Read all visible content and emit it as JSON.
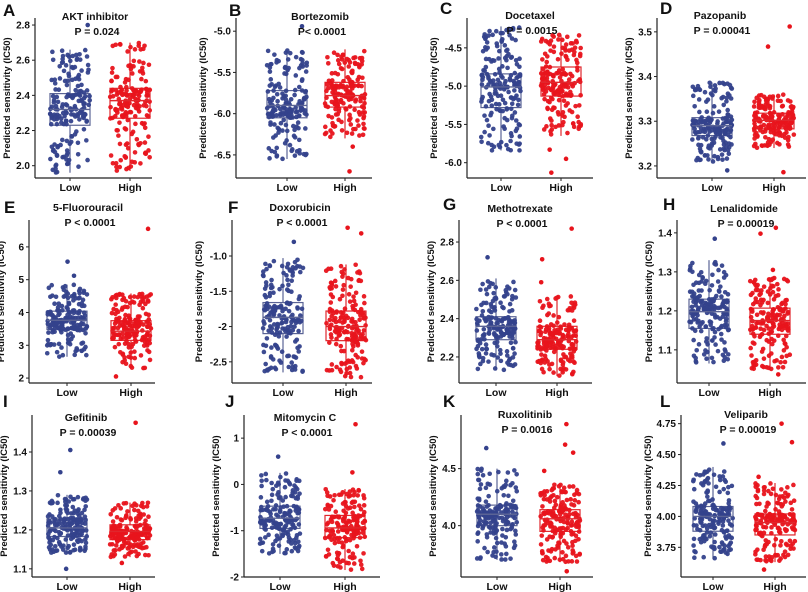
{
  "chart_data": [
    {
      "type": "box",
      "panel": "A",
      "title": "AKT inhibitor",
      "pvalue": "P = 0.024",
      "ylabel": "Predicted sensitivity (IC50)",
      "categories": [
        "Low",
        "High"
      ],
      "ylim": [
        1.93,
        2.84
      ],
      "ticks": [
        {
          "v": 2.0,
          "label": "2.0"
        },
        {
          "v": 2.2,
          "label": "2.2"
        },
        {
          "v": 2.4,
          "label": "2.4"
        },
        {
          "v": 2.6,
          "label": "2.6"
        },
        {
          "v": 2.8,
          "label": "2.8"
        }
      ],
      "series": [
        {
          "name": "Low",
          "q1": 2.23,
          "median": 2.32,
          "q3": 2.41,
          "whisker_low": 1.96,
          "whisker_high": 2.66,
          "outliers": [
            2.8
          ]
        },
        {
          "name": "High",
          "q1": 2.27,
          "median": 2.37,
          "q3": 2.44,
          "whisker_low": 1.97,
          "whisker_high": 2.7,
          "outliers": []
        }
      ]
    },
    {
      "type": "box",
      "panel": "B",
      "title": "Bortezomib",
      "pvalue": "P< 0.0001",
      "ylabel": "Predicted sensitivity (IC50)",
      "categories": [
        "Low",
        "High"
      ],
      "ylim": [
        -6.78,
        -4.84
      ],
      "ticks": [
        {
          "v": -6.5,
          "label": "-6.5"
        },
        {
          "v": -6.0,
          "label": "-6.0"
        },
        {
          "v": -5.5,
          "label": "-5.5"
        },
        {
          "v": -5.0,
          "label": "-5.0"
        }
      ],
      "series": [
        {
          "name": "Low",
          "q1": -6.05,
          "median": -5.9,
          "q3": -5.72,
          "whisker_low": -6.55,
          "whisker_high": -5.23,
          "outliers": [
            -4.94
          ]
        },
        {
          "name": "High",
          "q1": -5.92,
          "median": -5.78,
          "q3": -5.62,
          "whisker_low": -6.3,
          "whisker_high": -5.22,
          "outliers": [
            -6.4,
            -6.7
          ]
        }
      ]
    },
    {
      "type": "box",
      "panel": "C",
      "title": "Docetaxel",
      "pvalue": "P = 0.0015",
      "ylabel": "Predicted sensitivity (IC50)",
      "categories": [
        "Low",
        "High"
      ],
      "ylim": [
        -6.2,
        -4.11
      ],
      "ticks": [
        {
          "v": -6.0,
          "label": "-6.0"
        },
        {
          "v": -5.5,
          "label": "-5.5"
        },
        {
          "v": -5.0,
          "label": "-5.0"
        },
        {
          "v": -4.5,
          "label": "-4.5"
        }
      ],
      "series": [
        {
          "name": "Low",
          "q1": -5.28,
          "median": -5.01,
          "q3": -4.84,
          "whisker_low": -5.84,
          "whisker_high": -4.22,
          "outliers": []
        },
        {
          "name": "High",
          "q1": -5.13,
          "median": -4.95,
          "q3": -4.75,
          "whisker_low": -5.65,
          "whisker_high": -4.33,
          "outliers": [
            -5.83,
            -5.95,
            -6.13
          ]
        }
      ]
    },
    {
      "type": "box",
      "panel": "D",
      "title": "Pazopanib",
      "pvalue": "P = 0.00041",
      "ylabel": "Predicted sensitivity (IC50)",
      "categories": [
        "Low",
        "High"
      ],
      "ylim": [
        3.173,
        3.531
      ],
      "ticks": [
        {
          "v": 3.2,
          "label": "3.2"
        },
        {
          "v": 3.3,
          "label": "3.3"
        },
        {
          "v": 3.4,
          "label": "3.4"
        },
        {
          "v": 3.5,
          "label": "3.5"
        }
      ],
      "series": [
        {
          "name": "Low",
          "q1": 3.268,
          "median": 3.29,
          "q3": 3.308,
          "whisker_low": 3.21,
          "whisker_high": 3.387,
          "outliers": [
            3.19
          ]
        },
        {
          "name": "High",
          "q1": 3.283,
          "median": 3.302,
          "q3": 3.318,
          "whisker_low": 3.24,
          "whisker_high": 3.36,
          "outliers": [
            3.512,
            3.467,
            3.186
          ]
        }
      ]
    },
    {
      "type": "box",
      "panel": "E",
      "title": "5-Fluorouracil",
      "pvalue": "P < 0.0001",
      "ylabel": "Predicted sensitivity (IC50)",
      "categories": [
        "Low",
        "High"
      ],
      "ylim": [
        1.85,
        6.82
      ],
      "ticks": [
        {
          "v": 2,
          "label": "2"
        },
        {
          "v": 3,
          "label": "3"
        },
        {
          "v": 4,
          "label": "4"
        },
        {
          "v": 5,
          "label": "5"
        },
        {
          "v": 6,
          "label": "6"
        }
      ],
      "series": [
        {
          "name": "Low",
          "q1": 3.48,
          "median": 3.76,
          "q3": 4.04,
          "whisker_low": 2.65,
          "whisker_high": 4.85,
          "outliers": [
            5.55,
            5.12
          ]
        },
        {
          "name": "High",
          "q1": 3.15,
          "median": 3.43,
          "q3": 3.75,
          "whisker_low": 2.3,
          "whisker_high": 4.58,
          "outliers": [
            6.55,
            2.05
          ]
        }
      ]
    },
    {
      "type": "box",
      "panel": "F",
      "title": "Doxorubicin",
      "pvalue": "P < 0.0001",
      "ylabel": "Predicted sensitivity (IC50)",
      "categories": [
        "Low",
        "High"
      ],
      "ylim": [
        -2.8,
        -0.49
      ],
      "ticks": [
        {
          "v": -2.5,
          "label": "-2.5"
        },
        {
          "v": -2,
          "label": "-2"
        },
        {
          "v": -1.5,
          "label": "-1.5"
        },
        {
          "v": -1.0,
          "label": "-1.0"
        }
      ],
      "series": [
        {
          "name": "Low",
          "q1": -2.1,
          "median": -1.87,
          "q3": -1.66,
          "whisker_low": -2.65,
          "whisker_high": -1.03,
          "outliers": [
            -0.8
          ]
        },
        {
          "name": "High",
          "q1": -2.2,
          "median": -2.0,
          "q3": -1.78,
          "whisker_low": -2.72,
          "whisker_high": -1.12,
          "outliers": [
            -0.6,
            -0.68
          ]
        }
      ]
    },
    {
      "type": "box",
      "panel": "G",
      "title": "Methotrexate",
      "pvalue": "P < 0.0001",
      "ylabel": "Predicted sensitivity (IC50)",
      "categories": [
        "Low",
        "High"
      ],
      "ylim": [
        2.064,
        2.915
      ],
      "ticks": [
        {
          "v": 2.2,
          "label": "2.2"
        },
        {
          "v": 2.4,
          "label": "2.4"
        },
        {
          "v": 2.6,
          "label": "2.6"
        },
        {
          "v": 2.8,
          "label": "2.8"
        }
      ],
      "series": [
        {
          "name": "Low",
          "q1": 2.29,
          "median": 2.36,
          "q3": 2.41,
          "whisker_low": 2.13,
          "whisker_high": 2.61,
          "outliers": [
            2.72
          ]
        },
        {
          "name": "High",
          "q1": 2.24,
          "median": 2.29,
          "q3": 2.36,
          "whisker_low": 2.1,
          "whisker_high": 2.52,
          "outliers": [
            2.87,
            2.71,
            2.59
          ]
        }
      ]
    },
    {
      "type": "box",
      "panel": "H",
      "title": "Lenalidomide",
      "pvalue": "P = 0.00019",
      "ylabel": "Predicted sensitivity (IC50)",
      "categories": [
        "Low",
        "High"
      ],
      "ylim": [
        1.015,
        1.433
      ],
      "ticks": [
        {
          "v": 1.1,
          "label": "1.1"
        },
        {
          "v": 1.2,
          "label": "1.2"
        },
        {
          "v": 1.3,
          "label": "1.3"
        },
        {
          "v": 1.4,
          "label": "1.4"
        }
      ],
      "series": [
        {
          "name": "Low",
          "q1": 1.155,
          "median": 1.198,
          "q3": 1.23,
          "whisker_low": 1.065,
          "whisker_high": 1.33,
          "outliers": [
            1.385
          ]
        },
        {
          "name": "High",
          "q1": 1.14,
          "median": 1.175,
          "q3": 1.207,
          "whisker_low": 1.05,
          "whisker_high": 1.285,
          "outliers": [
            1.413,
            1.398,
            1.305,
            1.037
          ]
        }
      ]
    },
    {
      "type": "box",
      "panel": "I",
      "title": "Gefitinib",
      "pvalue": "P = 0.00039",
      "ylabel": "Predicted sensitivity (IC50)",
      "categories": [
        "Low",
        "High"
      ],
      "ylim": [
        1.079,
        1.495
      ],
      "ticks": [
        {
          "v": 1.1,
          "label": "1.1"
        },
        {
          "v": 1.2,
          "label": "1.2"
        },
        {
          "v": 1.3,
          "label": "1.3"
        },
        {
          "v": 1.4,
          "label": "1.4"
        }
      ],
      "series": [
        {
          "name": "Low",
          "q1": 1.183,
          "median": 1.205,
          "q3": 1.228,
          "whisker_low": 1.14,
          "whisker_high": 1.29,
          "outliers": [
            1.405,
            1.348,
            1.1
          ]
        },
        {
          "name": "High",
          "q1": 1.175,
          "median": 1.196,
          "q3": 1.213,
          "whisker_low": 1.13,
          "whisker_high": 1.27,
          "outliers": [
            1.475,
            1.115
          ]
        }
      ]
    },
    {
      "type": "box",
      "panel": "J",
      "title": "Mitomycin C",
      "pvalue": "P < 0.0001",
      "ylabel": "Predicted sensitivity (IC50)",
      "categories": [
        "Low",
        "High"
      ],
      "ylim": [
        -2.0,
        1.5
      ],
      "ticks": [
        {
          "v": -2,
          "label": "-2"
        },
        {
          "v": -1,
          "label": "-1"
        },
        {
          "v": 0,
          "label": "0"
        },
        {
          "v": 1,
          "label": "1"
        }
      ],
      "series": [
        {
          "name": "Low",
          "q1": -0.95,
          "median": -0.73,
          "q3": -0.47,
          "whisker_low": -1.5,
          "whisker_high": 0.25,
          "outliers": [
            0.6
          ]
        },
        {
          "name": "High",
          "q1": -1.15,
          "median": -0.94,
          "q3": -0.67,
          "whisker_low": -1.85,
          "whisker_high": -0.1,
          "outliers": [
            1.3,
            0.26
          ]
        }
      ]
    },
    {
      "type": "box",
      "panel": "K",
      "title": "Ruxolitinib",
      "pvalue": "P = 0.0016",
      "ylabel": "Predicted sensitivity (IC50)",
      "categories": [
        "Low",
        "High"
      ],
      "ylim": [
        3.55,
        4.97
      ],
      "ticks": [
        {
          "v": 4.0,
          "label": "4.0"
        },
        {
          "v": 4.5,
          "label": "4.5"
        }
      ],
      "series": [
        {
          "name": "Low",
          "q1": 4.0,
          "median": 4.1,
          "q3": 4.18,
          "whisker_low": 3.7,
          "whisker_high": 4.5,
          "outliers": [
            4.68
          ]
        },
        {
          "name": "High",
          "q1": 3.95,
          "median": 4.06,
          "q3": 4.14,
          "whisker_low": 3.68,
          "whisker_high": 4.36,
          "outliers": [
            4.89,
            4.71,
            4.64,
            4.48,
            3.6
          ]
        }
      ]
    },
    {
      "type": "box",
      "panel": "L",
      "title": "Veliparib",
      "pvalue": "P = 0.00019",
      "ylabel": "Predicted sensitivity (IC50)",
      "categories": [
        "Low",
        "High"
      ],
      "ylim": [
        3.51,
        4.82
      ],
      "ticks": [
        {
          "v": 3.75,
          "label": "3.75"
        },
        {
          "v": 4.0,
          "label": "4.00"
        },
        {
          "v": 4.25,
          "label": "4.25"
        },
        {
          "v": 4.5,
          "label": "4.50"
        },
        {
          "v": 4.75,
          "label": "4.75"
        }
      ],
      "series": [
        {
          "name": "Low",
          "q1": 3.88,
          "median": 4.0,
          "q3": 4.08,
          "whisker_low": 3.66,
          "whisker_high": 4.4,
          "outliers": [
            4.59
          ]
        },
        {
          "name": "High",
          "q1": 3.85,
          "median": 3.95,
          "q3": 4.02,
          "whisker_low": 3.63,
          "whisker_high": 4.27,
          "outliers": [
            4.75,
            4.6,
            4.32,
            3.57
          ]
        }
      ]
    }
  ],
  "colors": {
    "Low": "#34428c",
    "High": "#e8141c",
    "LowBox": "#5a6395",
    "HighBox": "#e0262c"
  }
}
